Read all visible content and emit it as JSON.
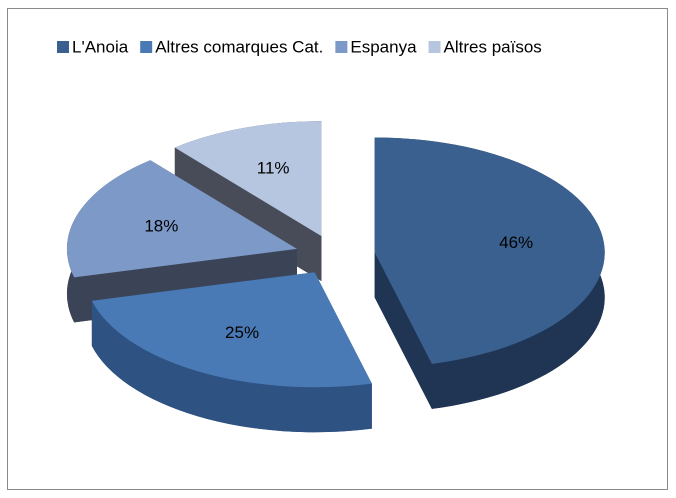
{
  "chart_data": {
    "type": "pie",
    "three_d": true,
    "exploded": true,
    "categories": [
      "L'Anoia",
      "Altres comarques Cat.",
      "Espanya",
      "Altres països"
    ],
    "values": [
      46,
      25,
      18,
      11
    ],
    "value_labels": [
      "46%",
      "25%",
      "18%",
      "11%"
    ],
    "colors": [
      "#3a6090",
      "#4a7ab6",
      "#7d99c8",
      "#b6c5e0"
    ],
    "side_colors": [
      "#1f3553",
      "#2e5282",
      "#3b4456",
      "#474c58"
    ],
    "legend": "top"
  }
}
